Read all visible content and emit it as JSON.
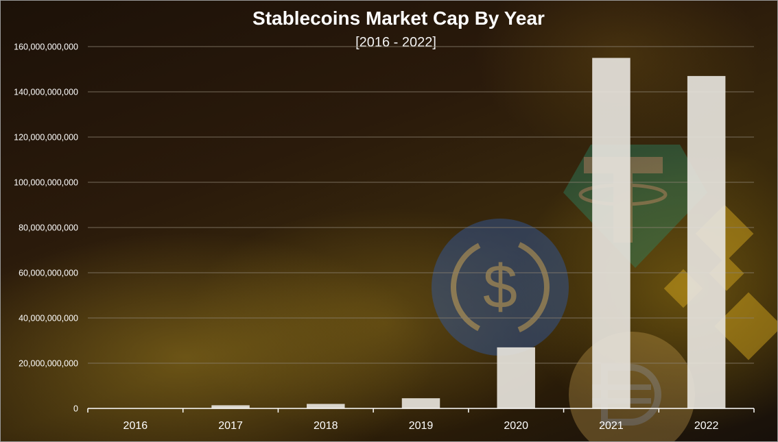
{
  "chart_data": {
    "type": "bar",
    "title": "Stablecoins Market Cap By Year",
    "subtitle": "[2016 - 2022]",
    "xlabel": "",
    "ylabel": "",
    "categories": [
      "2016",
      "2017",
      "2018",
      "2019",
      "2020",
      "2021",
      "2022"
    ],
    "values": [
      0,
      1400000000,
      2000000000,
      4500000000,
      27000000000,
      155000000000,
      147000000000
    ],
    "ylim": [
      0,
      160000000000
    ],
    "yticks": [
      0,
      20000000000,
      40000000000,
      60000000000,
      80000000000,
      100000000000,
      120000000000,
      140000000000,
      160000000000
    ],
    "ytick_labels": [
      "0",
      "20,000,000,000",
      "40,000,000,000",
      "60,000,000,000",
      "80,000,000,000",
      "100,000,000,000",
      "120,000,000,000",
      "140,000,000,000",
      "160,000,000,000"
    ],
    "grid": true,
    "legend": "none",
    "bar_color": "#e6e3dc",
    "grid_color": "#8a8070",
    "axis_color": "#ffffff"
  },
  "background_icons": [
    "usdc-coin-icon",
    "tether-coin-icon",
    "binance-coin-icon",
    "dai-coin-icon"
  ]
}
